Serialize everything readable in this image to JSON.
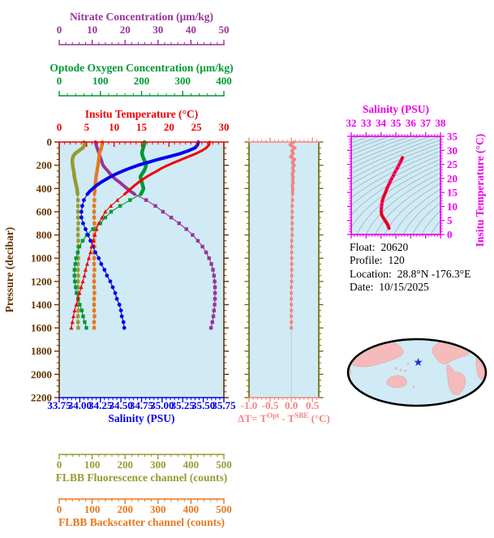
{
  "page": {
    "background": "#ffffff",
    "plot_background": "#d0ebf5"
  },
  "float_info": {
    "lines": [
      {
        "label": "Float:",
        "value": "20620"
      },
      {
        "label": "Profile:",
        "value": "120"
      },
      {
        "label": "Location:",
        "value": "28.8°N  -176.3°E"
      },
      {
        "label": "Date:",
        "value": "10/15/2025"
      }
    ]
  },
  "chart_data": [
    {
      "id": "profiles",
      "type": "line",
      "ylabel": "Pressure (decibar)",
      "ylabel_color": "#663300",
      "ylim": [
        0,
        2200
      ],
      "ytick_major": 200,
      "ytick_minor": 50,
      "background": "#d0ebf5",
      "frame_color": "#663300",
      "pressure_db": [
        0,
        25,
        50,
        75,
        100,
        125,
        150,
        175,
        200,
        225,
        250,
        275,
        300,
        325,
        350,
        375,
        400,
        425,
        450,
        500,
        550,
        600,
        650,
        700,
        750,
        800,
        850,
        900,
        950,
        1000,
        1050,
        1100,
        1150,
        1200,
        1250,
        1300,
        1350,
        1400,
        1450,
        1500,
        1550,
        1600
      ],
      "axes": [
        {
          "id": "temperature",
          "label": "Insitu Temperature (°C)",
          "color": "#f00000",
          "lim": [
            0,
            30
          ],
          "major": 5,
          "minor": 1,
          "side": "top",
          "slot": 0,
          "decimals": 0,
          "tick_dir": "in"
        },
        {
          "id": "oxygen",
          "label": "Optode Oxygen Concentration (μm/kg)",
          "color": "#009933",
          "lim": [
            0,
            400
          ],
          "major": 100,
          "minor": 20,
          "side": "top",
          "slot": 1,
          "decimals": 0,
          "tick_dir": "out"
        },
        {
          "id": "nitrate",
          "label": "Nitrate Concentration (μm/kg)",
          "color": "#993399",
          "lim": [
            0,
            50
          ],
          "major": 10,
          "minor": 2,
          "side": "top",
          "slot": 2,
          "decimals": 0,
          "tick_dir": "out"
        },
        {
          "id": "salinity",
          "label": "Salinity (PSU)",
          "color": "#0000ee",
          "lim": [
            33.75,
            35.75
          ],
          "major": 0.25,
          "minor": 0.05,
          "side": "bottom",
          "slot": 0,
          "decimals": 2,
          "tick_dir": "out"
        },
        {
          "id": "fluorescence",
          "label": "FLBB Fluorescence channel (counts)",
          "color": "#999933",
          "lim": [
            0,
            500
          ],
          "major": 100,
          "minor": 20,
          "side": "bottom",
          "slot": 1,
          "decimals": 0,
          "tick_dir": "out"
        },
        {
          "id": "backscatter",
          "label": "FLBB Backscatter channel (counts)",
          "color": "#e8771e",
          "lim": [
            0,
            500
          ],
          "major": 100,
          "minor": 20,
          "side": "bottom",
          "slot": 2,
          "decimals": 0,
          "tick_dir": "out"
        }
      ],
      "series": [
        {
          "name": "nitrate",
          "axis": "nitrate",
          "color": "#993399",
          "marker": "square",
          "values": [
            11.0,
            11.2,
            11.5,
            11.8,
            12.1,
            12.4,
            12.7,
            13.0,
            13.3,
            14.0,
            14.8,
            15.5,
            16.3,
            17.3,
            18.5,
            19.5,
            20.6,
            21.7,
            22.9,
            26.4,
            29.2,
            31.5,
            34.0,
            36.4,
            38.6,
            40.5,
            42.1,
            43.5,
            44.6,
            45.5,
            46.2,
            46.7,
            47.0,
            47.2,
            47.3,
            47.3,
            47.3,
            47.2,
            47.0,
            46.8,
            46.5,
            46.1
          ]
        },
        {
          "name": "fluorescence",
          "axis": "fluorescence",
          "color": "#999933",
          "marker": "square",
          "values": [
            75,
            77,
            72,
            60,
            48,
            42,
            40,
            40,
            41,
            42,
            44,
            45,
            46,
            48,
            50,
            52,
            54,
            55,
            56,
            57,
            57,
            57,
            57,
            58,
            57,
            57,
            58,
            57,
            57,
            58,
            57,
            57,
            58,
            57,
            57,
            58,
            57,
            57,
            58,
            57,
            57,
            58
          ]
        },
        {
          "name": "backscatter",
          "axis": "backscatter",
          "color": "#e8771e",
          "marker": "square",
          "values": [
            131,
            130,
            128,
            125,
            122,
            121,
            120,
            119,
            118,
            116,
            115,
            113,
            112,
            111,
            110,
            109,
            108,
            108,
            107,
            107,
            106,
            106,
            106,
            107,
            106,
            106,
            106,
            107,
            106,
            106,
            106,
            107,
            106,
            106,
            106,
            107,
            106,
            106,
            106,
            107,
            106,
            106
          ]
        },
        {
          "name": "oxygen",
          "axis": "oxygen",
          "color": "#009933",
          "marker": "square",
          "values": [
            207,
            206,
            204,
            202,
            201,
            203,
            206,
            209,
            211,
            209,
            206,
            201,
            197,
            199,
            201,
            203,
            205,
            202,
            198,
            172,
            148,
            126,
            112,
            100,
            82,
            67,
            57,
            49,
            45,
            41,
            39,
            37,
            37,
            38,
            40,
            42,
            46,
            50,
            55,
            58,
            62,
            66
          ]
        },
        {
          "name": "salinity",
          "axis": "salinity",
          "color": "#0000ee",
          "marker": "circle",
          "values": [
            35.44,
            35.43,
            35.4,
            35.32,
            35.22,
            35.09,
            34.95,
            34.83,
            34.71,
            34.61,
            34.52,
            34.44,
            34.37,
            34.31,
            34.25,
            34.2,
            34.16,
            34.12,
            34.09,
            34.05,
            34.03,
            34.02,
            34.02,
            34.04,
            34.07,
            34.1,
            34.13,
            34.16,
            34.19,
            34.23,
            34.26,
            34.3,
            34.33,
            34.37,
            34.4,
            34.43,
            34.45,
            34.48,
            34.5,
            34.51,
            34.53,
            34.54
          ]
        },
        {
          "name": "temperature",
          "axis": "temperature",
          "color": "#f00000",
          "marker": "triangle",
          "values": [
            27.4,
            27.3,
            26.8,
            26.0,
            24.9,
            23.6,
            22.3,
            21.0,
            19.8,
            18.7,
            17.8,
            16.8,
            15.9,
            15.1,
            14.4,
            13.7,
            13.1,
            12.5,
            11.9,
            10.6,
            9.4,
            8.4,
            7.8,
            7.2,
            6.8,
            6.5,
            6.2,
            5.9,
            5.7,
            5.4,
            5.1,
            4.8,
            4.6,
            4.3,
            4.0,
            3.7,
            3.4,
            3.1,
            2.8,
            2.6,
            2.4,
            2.2
          ]
        }
      ]
    },
    {
      "id": "delta_t",
      "type": "line",
      "xlabel_parts": [
        "ΔT= T",
        "Opt",
        " - T",
        "SBE",
        " (°C)"
      ],
      "xlim": [
        -1.0,
        0.65
      ],
      "xticks": [
        -1.0,
        -0.5,
        0.0,
        0.5
      ],
      "xtick_minor": 0.1,
      "ylim": [
        0,
        2200
      ],
      "background": "#d0ebf5",
      "side_frame_color": "#666600",
      "top_bottom_color": "#f5837d",
      "zero_gridline": true,
      "series_color": "#f5837d",
      "values": [
        0.06,
        -0.03,
        0.09,
        0.01,
        0.05,
        -0.02,
        0.08,
        0.02,
        0.07,
        0.03,
        0.06,
        0.02,
        0.05,
        0.03,
        0.05,
        0.02,
        0.04,
        0.03,
        0.03,
        0.03,
        0.02,
        0.02,
        0.02,
        0.02,
        0.02,
        0.02,
        0.01,
        0.01,
        0.01,
        0.01,
        0.01,
        0.01,
        0.01,
        0.01,
        0.0,
        0.0,
        0.0,
        0.0,
        0.0,
        0.0,
        0.0,
        0.0
      ]
    },
    {
      "id": "ts_diagram",
      "type": "scatter",
      "title": "Salinity (PSU)",
      "xlim": [
        32,
        38
      ],
      "xmajor": 1,
      "xminor": 0.2,
      "ylabel": "Insitu Temperature (°C)",
      "ylim": [
        0,
        35
      ],
      "ymajor": 5,
      "yminor": 1,
      "frame_color": "#ee00ee",
      "background": "#d0ebf5",
      "curve_color": "#ff1493",
      "dot_color": "#e00000",
      "isopycnal_color": "#9ab4bc",
      "isopycnal_levels": {
        "from": 16,
        "to": 30,
        "step": 0.5
      },
      "curve_source": "salinity-vs-temperature from profiles chart"
    },
    {
      "id": "location_map",
      "type": "map",
      "projection": "pacific-centered-ellipse",
      "ocean_color": "#d0ebf5",
      "land_color": "#f5baba",
      "outline_color": "#000000",
      "marker": {
        "symbol": "star",
        "color": "#2233cc",
        "lat": 28.8,
        "lon": -176.3
      }
    }
  ]
}
